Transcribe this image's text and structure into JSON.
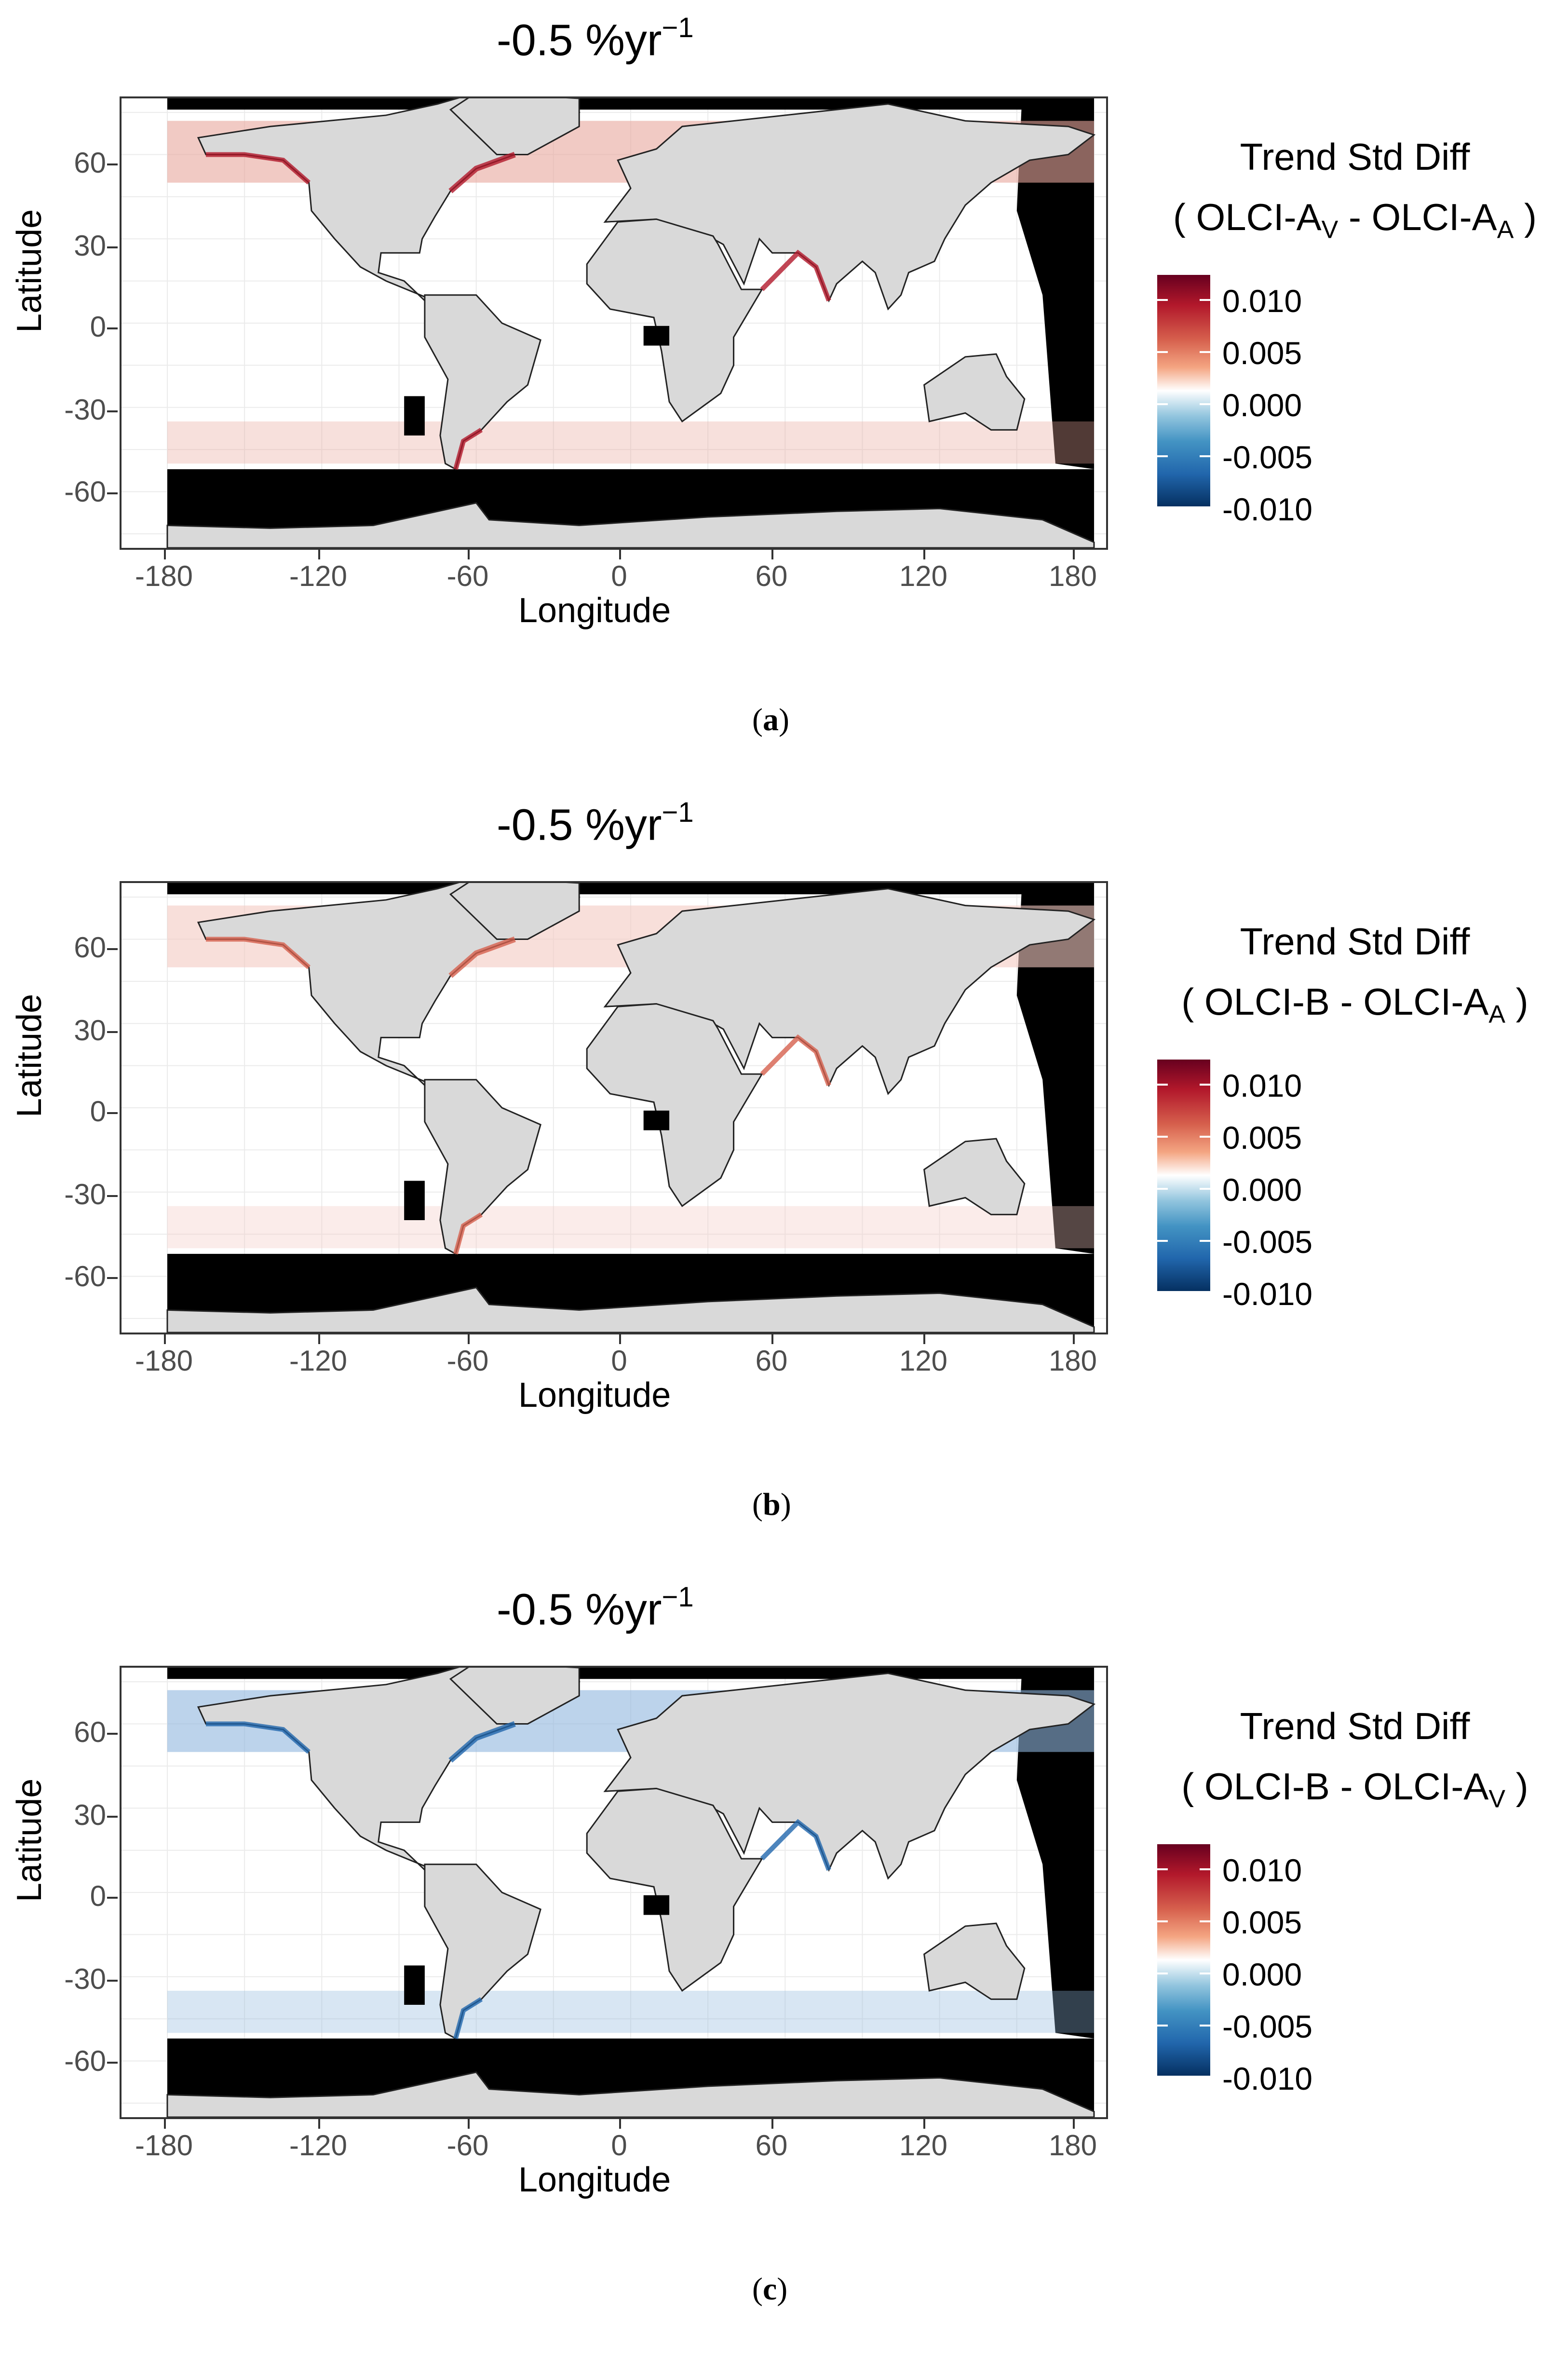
{
  "figure": {
    "panels": [
      {
        "label": "a",
        "title_main": "-0.5 %yr",
        "title_sup": "−1",
        "legend_title": "Trend Std Diff",
        "legend_sub_open": "( ",
        "legend_term1": "OLCI-A",
        "legend_term1_sub": "V",
        "legend_minus": " - ",
        "legend_term2": "OLCI-A",
        "legend_term2_sub": "A",
        "legend_sub_close": " )"
      },
      {
        "label": "b",
        "title_main": "-0.5 %yr",
        "title_sup": "−1",
        "legend_title": "Trend Std Diff",
        "legend_sub_open": "( ",
        "legend_term1": "OLCI-B ",
        "legend_term1_sub": "",
        "legend_minus": " - ",
        "legend_term2": "OLCI-A",
        "legend_term2_sub": "A",
        "legend_sub_close": " )"
      },
      {
        "label": "c",
        "title_main": "-0.5 %yr",
        "title_sup": "−1",
        "legend_title": "Trend Std Diff",
        "legend_sub_open": "( ",
        "legend_term1": "OLCI-B ",
        "legend_term1_sub": "",
        "legend_minus": " - ",
        "legend_term2": "OLCI-A",
        "legend_term2_sub": "V",
        "legend_sub_close": " )"
      }
    ],
    "axes": {
      "xlabel": "Longitude",
      "ylabel": "Latitude",
      "x_ticks": [
        "-180",
        "-120",
        "-60",
        "0",
        "60",
        "120",
        "180"
      ],
      "y_ticks": [
        "60",
        "30",
        "0",
        "-30",
        "-60"
      ],
      "x_range": [
        -180,
        180
      ],
      "y_range": [
        -80,
        80
      ]
    },
    "colorbar": {
      "tick_labels": [
        "0.010",
        "0.005",
        "0.000",
        "-0.005",
        "-0.010"
      ],
      "range": [
        -0.01,
        0.01
      ],
      "colors": {
        "high": "#b2182b",
        "mid": "#ffffff",
        "low": "#2166ac"
      }
    },
    "colors": {
      "land": "#d9d9d9",
      "no_data": "#000000",
      "ocean": "#ffffff"
    }
  }
}
